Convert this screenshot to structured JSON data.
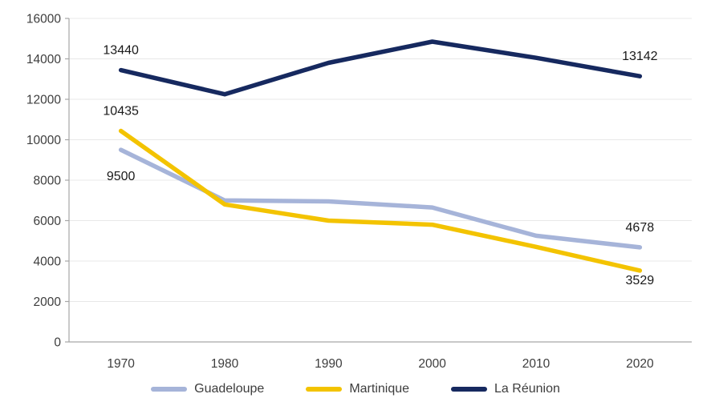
{
  "chart_data": {
    "type": "line",
    "categories": [
      "1970",
      "1980",
      "1990",
      "2000",
      "2010",
      "2020"
    ],
    "series": [
      {
        "name": "Guadeloupe",
        "color": "#a6b4d9",
        "values": [
          9500,
          7000,
          6950,
          6650,
          5250,
          4678
        ]
      },
      {
        "name": "Martinique",
        "color": "#f3c300",
        "values": [
          10435,
          6800,
          6000,
          5800,
          4700,
          3529
        ]
      },
      {
        "name": "La Réunion",
        "color": "#16295f",
        "values": [
          13440,
          12250,
          13800,
          14850,
          14050,
          13142
        ]
      }
    ],
    "data_labels": [
      {
        "series_index": 2,
        "category_index": 0,
        "text": "13440",
        "placement": "above"
      },
      {
        "series_index": 1,
        "category_index": 0,
        "text": "10435",
        "placement": "above"
      },
      {
        "series_index": 0,
        "category_index": 0,
        "text": "9500",
        "placement": "below-far"
      },
      {
        "series_index": 2,
        "category_index": 5,
        "text": "13142",
        "placement": "above"
      },
      {
        "series_index": 0,
        "category_index": 5,
        "text": "4678",
        "placement": "above"
      },
      {
        "series_index": 1,
        "category_index": 5,
        "text": "3529",
        "placement": "below"
      }
    ],
    "y_axis": {
      "min": 0,
      "max": 16000,
      "step": 2000,
      "tick_labels": [
        "0",
        "2000",
        "4000",
        "6000",
        "8000",
        "10000",
        "12000",
        "14000",
        "16000"
      ]
    },
    "grid": true,
    "legend_position": "bottom",
    "colors": {
      "grid": "#e8e8e8",
      "axis": "#a6a6a6",
      "tick_text": "#3d3d3d",
      "data_label_text": "#1a1a1a",
      "background": "#ffffff"
    }
  }
}
